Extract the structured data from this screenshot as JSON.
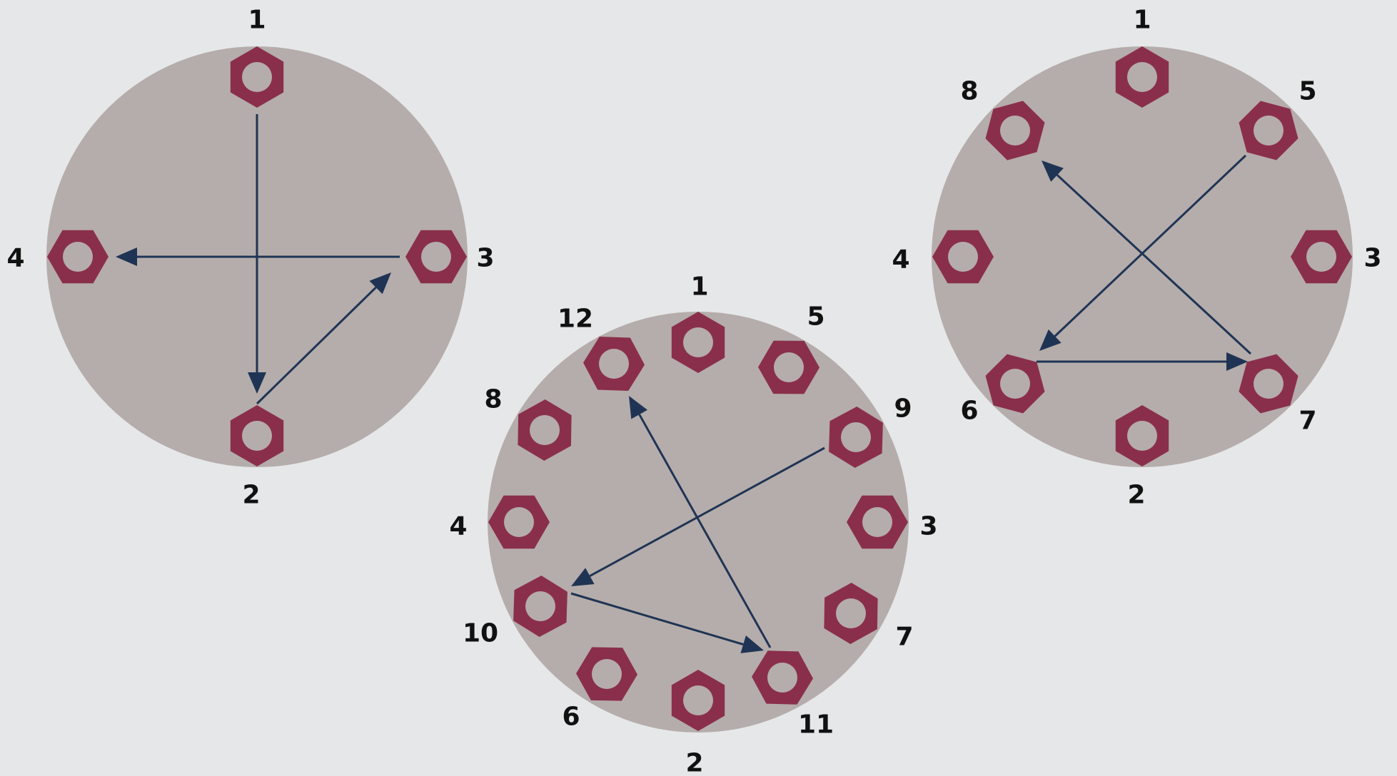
{
  "colors": {
    "background": "#e6e7e8",
    "flange": "#b5adab",
    "nut": "#8a2f4b",
    "arrow": "#1f3454",
    "label": "#111111"
  },
  "icons": {
    "bolt": "hex-nut-icon",
    "sequence": "arrow-icon"
  },
  "patterns": [
    {
      "bolt_count": 4,
      "labels": [
        "1",
        "2",
        "3",
        "4"
      ],
      "sequence_arrows": [
        [
          "1",
          "2"
        ],
        [
          "2",
          "3"
        ],
        [
          "3",
          "4"
        ]
      ]
    },
    {
      "bolt_count": 12,
      "labels": [
        "1",
        "2",
        "3",
        "4",
        "5",
        "6",
        "7",
        "8",
        "9",
        "10",
        "11",
        "12"
      ],
      "sequence_arrows": [
        [
          "9",
          "10"
        ],
        [
          "10",
          "11"
        ],
        [
          "11",
          "12"
        ]
      ]
    },
    {
      "bolt_count": 8,
      "labels": [
        "1",
        "2",
        "3",
        "4",
        "5",
        "6",
        "7",
        "8"
      ],
      "sequence_arrows": [
        [
          "5",
          "6"
        ],
        [
          "6",
          "7"
        ],
        [
          "7",
          "8"
        ]
      ]
    }
  ]
}
